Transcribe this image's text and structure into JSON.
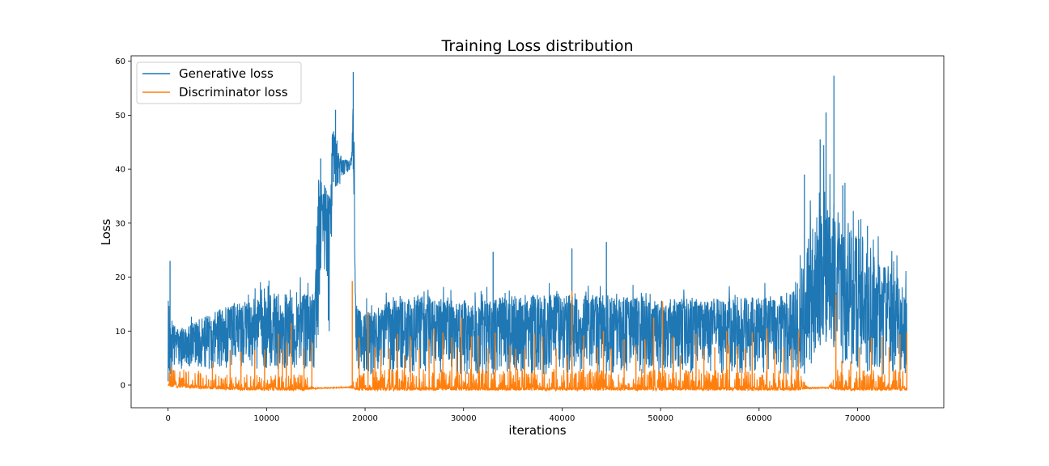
{
  "chart_data": {
    "type": "line",
    "title": "Training Loss distribution",
    "xlabel": "iterations",
    "ylabel": "Loss",
    "xlim": [
      -3750,
      78750
    ],
    "ylim": [
      -4.2,
      61.0
    ],
    "xticks": [
      0,
      10000,
      20000,
      30000,
      40000,
      50000,
      60000,
      70000
    ],
    "yticks": [
      0,
      10,
      20,
      30,
      40,
      50,
      60
    ],
    "grid": false,
    "legend_position": "top-left",
    "x_range": [
      0,
      75000
    ],
    "series": [
      {
        "name": "Generative loss",
        "color": "#1f77b4",
        "envelope": {
          "x": [
            0,
            200,
            1000,
            3000,
            6000,
            9000,
            12000,
            14900,
            15300,
            15600,
            16400,
            16700,
            17200,
            17600,
            18500,
            18800,
            19100,
            19600,
            25000,
            30000,
            35000,
            40000,
            45000,
            50000,
            55000,
            60000,
            63000,
            64500,
            65200,
            66000,
            66500,
            67000,
            67600,
            68500,
            70000,
            72000,
            74000,
            75000
          ],
          "upper": [
            23,
            15,
            12,
            14,
            17,
            19,
            21,
            20,
            42,
            40,
            38,
            50,
            45,
            43,
            42,
            58,
            17,
            16,
            19,
            18,
            19,
            20,
            19,
            18,
            18,
            19,
            19,
            28,
            38,
            33,
            45,
            44,
            35,
            42,
            36,
            29,
            25,
            21
          ],
          "lower": [
            0.5,
            2,
            3,
            3,
            3,
            3,
            3,
            3,
            5,
            30,
            6,
            38,
            36,
            38,
            40,
            40,
            3,
            2,
            2,
            2,
            2,
            2,
            2,
            2,
            2,
            2,
            2,
            2,
            3,
            7,
            8,
            8,
            7,
            4,
            3,
            2,
            2,
            2
          ],
          "typical_upper": [
            12,
            9,
            8,
            10,
            11,
            12,
            13,
            13,
            38,
            36,
            30,
            46,
            42,
            41,
            41,
            44,
            12,
            12,
            13,
            13,
            13,
            13,
            13,
            13,
            13,
            13,
            13,
            14,
            20,
            20,
            22,
            22,
            20,
            20,
            18,
            16,
            14,
            13
          ]
        },
        "spikes": [
          [
            200,
            23
          ],
          [
            15500,
            42
          ],
          [
            16800,
            47
          ],
          [
            17000,
            51
          ],
          [
            18800,
            58
          ],
          [
            33000,
            24.7
          ],
          [
            41000,
            25.3
          ],
          [
            44500,
            26.5
          ],
          [
            64600,
            39
          ],
          [
            66200,
            45.5
          ],
          [
            66800,
            50.5
          ],
          [
            67600,
            57.3
          ],
          [
            68500,
            37
          ],
          [
            71000,
            29.5
          ]
        ]
      },
      {
        "name": "Discriminator loss",
        "color": "#ff7f0e",
        "baseline": {
          "x": [
            0,
            2000,
            6000,
            10000,
            14000,
            15000,
            18500,
            19000,
            25000,
            30000,
            35000,
            40000,
            45000,
            50000,
            55000,
            60000,
            64000,
            65000,
            67000,
            68000,
            72000,
            75000
          ],
          "low": [
            -0.3,
            -0.6,
            -0.9,
            -1.0,
            -1.0,
            -0.7,
            -0.5,
            -1.0,
            -1.0,
            -1.0,
            -1.0,
            -1.0,
            -1.0,
            -1.0,
            -1.0,
            -1.0,
            -1.0,
            -0.7,
            -0.6,
            -1.0,
            -1.0,
            -1.0
          ],
          "high": [
            3,
            3,
            2,
            2,
            2,
            -0.5,
            -0.3,
            3,
            3,
            3,
            3,
            3,
            3,
            3,
            3,
            3,
            3,
            -0.4,
            -0.4,
            3,
            3,
            3
          ]
        },
        "spikes": [
          [
            300,
            3.5
          ],
          [
            1200,
            2.5
          ],
          [
            3100,
            2.6
          ],
          [
            4500,
            4.2
          ],
          [
            6300,
            6.5
          ],
          [
            7400,
            6.2
          ],
          [
            8800,
            6.5
          ],
          [
            9800,
            6.6
          ],
          [
            11200,
            9.5
          ],
          [
            11600,
            6.5
          ],
          [
            12000,
            8.0
          ],
          [
            12500,
            11.5
          ],
          [
            13800,
            6.8
          ],
          [
            14600,
            8.0
          ],
          [
            18700,
            19.3
          ],
          [
            19400,
            8.8
          ],
          [
            20300,
            13.5
          ],
          [
            21000,
            7.0
          ],
          [
            21600,
            6.8
          ],
          [
            22500,
            6.8
          ],
          [
            23300,
            9.5
          ],
          [
            24000,
            5.5
          ],
          [
            24600,
            9.0
          ],
          [
            25500,
            6.8
          ],
          [
            26500,
            8.5
          ],
          [
            27000,
            10.5
          ],
          [
            27900,
            9.7
          ],
          [
            28800,
            8.8
          ],
          [
            29300,
            7.0
          ],
          [
            29800,
            12.5
          ],
          [
            30800,
            9.0
          ],
          [
            31500,
            9.2
          ],
          [
            32500,
            6.8
          ],
          [
            33200,
            9.7
          ],
          [
            34700,
            7.3
          ],
          [
            35300,
            6.7
          ],
          [
            36200,
            6.8
          ],
          [
            37200,
            9.5
          ],
          [
            38000,
            9.0
          ],
          [
            39400,
            6.8
          ],
          [
            40500,
            5.6
          ],
          [
            41000,
            17.5
          ],
          [
            42200,
            9.2
          ],
          [
            43600,
            7.0
          ],
          [
            44200,
            10.0
          ],
          [
            45000,
            6.8
          ],
          [
            46300,
            8.5
          ],
          [
            47500,
            7.5
          ],
          [
            48400,
            8.5
          ],
          [
            49300,
            12.5
          ],
          [
            50200,
            15.5
          ],
          [
            51300,
            9.0
          ],
          [
            52000,
            5.5
          ],
          [
            53600,
            9.5
          ],
          [
            54400,
            6.8
          ],
          [
            55500,
            7.0
          ],
          [
            56700,
            10.0
          ],
          [
            57000,
            7.5
          ],
          [
            57800,
            7.2
          ],
          [
            58600,
            6.8
          ],
          [
            59300,
            9.8
          ],
          [
            60800,
            10.5
          ],
          [
            61600,
            6.5
          ],
          [
            62500,
            7.0
          ],
          [
            63300,
            6.8
          ],
          [
            64000,
            10.0
          ],
          [
            67800,
            16.8
          ],
          [
            68400,
            4.5
          ],
          [
            69300,
            4.4
          ],
          [
            70200,
            7.0
          ],
          [
            71400,
            8.8
          ],
          [
            72500,
            9.0
          ],
          [
            73200,
            7.0
          ],
          [
            74300,
            9.4
          ],
          [
            75000,
            9.8
          ]
        ]
      }
    ]
  }
}
